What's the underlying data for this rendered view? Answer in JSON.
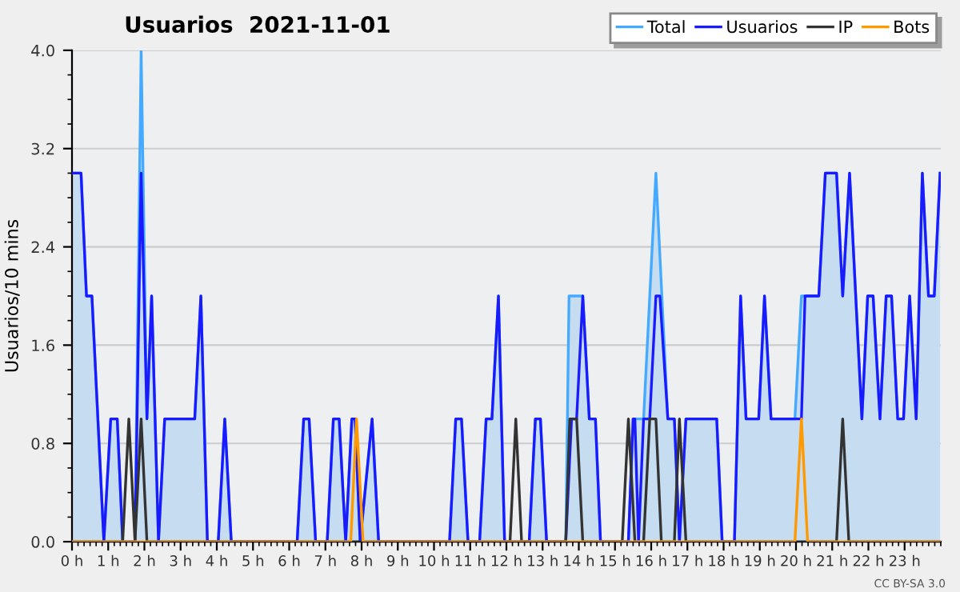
{
  "chart_data": {
    "type": "line",
    "title": "Usuarios  2021-11-01",
    "ylabel": "Usuarios/10 mins",
    "annotations": [
      "CC BY-SA 3.0"
    ],
    "xlim": [
      0,
      24
    ],
    "xticks": [
      {
        "value": 0,
        "label": "0 h"
      },
      {
        "value": 1,
        "label": "1 h"
      },
      {
        "value": 2,
        "label": "2 h"
      },
      {
        "value": 3,
        "label": "3 h"
      },
      {
        "value": 4,
        "label": "4 h"
      },
      {
        "value": 5,
        "label": "5 h"
      },
      {
        "value": 6,
        "label": "6 h"
      },
      {
        "value": 7,
        "label": "7 h"
      },
      {
        "value": 8,
        "label": "8 h"
      },
      {
        "value": 9,
        "label": "9 h"
      },
      {
        "value": 10,
        "label": "10 h"
      },
      {
        "value": 11,
        "label": "11 h"
      },
      {
        "value": 12,
        "label": "12 h"
      },
      {
        "value": 13,
        "label": "13 h"
      },
      {
        "value": 14,
        "label": "14 h"
      },
      {
        "value": 15,
        "label": "15 h"
      },
      {
        "value": 16,
        "label": "16 h"
      },
      {
        "value": 17,
        "label": "17 h"
      },
      {
        "value": 18,
        "label": "18 h"
      },
      {
        "value": 19,
        "label": "19 h"
      },
      {
        "value": 20,
        "label": "20 h"
      },
      {
        "value": 21,
        "label": "21 h"
      },
      {
        "value": 22,
        "label": "22 h"
      },
      {
        "value": 23,
        "label": "23 h"
      }
    ],
    "ylim": [
      0,
      4
    ],
    "yticks": [
      {
        "value": 0,
        "label": "0.0"
      },
      {
        "value": 0.8,
        "label": "0.8"
      },
      {
        "value": 1.6,
        "label": "1.6"
      },
      {
        "value": 2.4,
        "label": "2.4"
      },
      {
        "value": 3.2,
        "label": "3.2"
      },
      {
        "value": 4,
        "label": "4.0"
      }
    ],
    "grid": "y",
    "legend": "top right",
    "marker": "none",
    "line_style": "solid",
    "series": [
      {
        "name": "Total",
        "type": "area",
        "color": "#44aaff",
        "x": [
          0,
          0.25,
          0.4,
          0.55,
          0.88,
          1.07,
          1.25,
          1.4,
          1.74,
          1.91,
          2.07,
          2.2,
          2.39,
          2.56,
          3.39,
          3.56,
          3.74,
          4.04,
          4.22,
          4.4,
          6.22,
          6.4,
          6.55,
          6.73,
          7.05,
          7.22,
          7.38,
          7.56,
          7.73,
          7.82,
          7.96,
          8.29,
          8.47,
          10.43,
          10.6,
          10.76,
          10.94,
          11.26,
          11.44,
          11.6,
          11.78,
          11.95,
          12.63,
          12.8,
          12.94,
          13.11,
          13.64,
          13.73,
          14.11,
          14.29,
          14.46,
          14.6,
          15.37,
          15.5,
          15.79,
          16.13,
          16.46,
          16.64,
          16.78,
          16.96,
          17.81,
          17.96,
          18.3,
          18.47,
          18.62,
          18.97,
          19.13,
          19.31,
          19.97,
          20.15,
          20.63,
          20.81,
          21.12,
          21.29,
          21.48,
          21.82,
          21.98,
          22.13,
          22.32,
          22.49,
          22.64,
          22.81,
          22.97,
          23.14,
          23.32,
          23.49,
          23.66,
          23.82,
          23.98
        ],
        "values": [
          3,
          3,
          2,
          2,
          0,
          1,
          1,
          0,
          0,
          4,
          1,
          2,
          0,
          1,
          1,
          2,
          0,
          0,
          1,
          0,
          0,
          1,
          1,
          0,
          0,
          1,
          1,
          0,
          1,
          1,
          0,
          1,
          0,
          0,
          1,
          1,
          0,
          0,
          1,
          1,
          2,
          0,
          0,
          1,
          1,
          0,
          0,
          2,
          2,
          1,
          1,
          0,
          0,
          1,
          1,
          3,
          1,
          1,
          0,
          1,
          1,
          0,
          0,
          2,
          1,
          1,
          2,
          1,
          1,
          2,
          2,
          3,
          3,
          2,
          3,
          1,
          2,
          2,
          1,
          2,
          2,
          1,
          1,
          2,
          1,
          3,
          2,
          2,
          3
        ]
      },
      {
        "name": "Usuarios",
        "color": "#1a1aff",
        "x": [
          0,
          0.25,
          0.4,
          0.55,
          0.88,
          1.07,
          1.25,
          1.4,
          1.74,
          1.91,
          2.07,
          2.2,
          2.39,
          2.56,
          3.39,
          3.56,
          3.74,
          4.04,
          4.22,
          4.4,
          6.22,
          6.4,
          6.55,
          6.73,
          7.05,
          7.22,
          7.38,
          7.56,
          7.73,
          7.82,
          7.96,
          8.29,
          8.47,
          10.43,
          10.6,
          10.76,
          10.94,
          11.26,
          11.44,
          11.6,
          11.78,
          11.95,
          12.63,
          12.8,
          12.94,
          13.11,
          13.64,
          13.8,
          13.94,
          14.11,
          14.29,
          14.46,
          14.6,
          15.37,
          15.5,
          15.55,
          15.65,
          15.79,
          15.96,
          16.13,
          16.24,
          16.46,
          16.64,
          16.78,
          16.96,
          17.81,
          17.96,
          18.3,
          18.47,
          18.62,
          18.97,
          19.13,
          19.31,
          20.15,
          20.25,
          20.63,
          20.81,
          21.12,
          21.29,
          21.48,
          21.82,
          21.98,
          22.13,
          22.32,
          22.49,
          22.64,
          22.81,
          22.97,
          23.14,
          23.32,
          23.49,
          23.66,
          23.82,
          23.98
        ],
        "values": [
          3,
          3,
          2,
          2,
          0,
          1,
          1,
          0,
          0,
          3,
          1,
          2,
          0,
          1,
          1,
          2,
          0,
          0,
          1,
          0,
          0,
          1,
          1,
          0,
          0,
          1,
          1,
          0,
          1,
          1,
          0,
          1,
          0,
          0,
          1,
          1,
          0,
          0,
          1,
          1,
          2,
          0,
          0,
          1,
          1,
          0,
          0,
          1,
          1,
          2,
          1,
          1,
          0,
          0,
          1,
          1,
          0,
          1,
          1,
          2,
          2,
          1,
          1,
          0,
          1,
          1,
          0,
          0,
          2,
          1,
          1,
          2,
          1,
          1,
          2,
          2,
          3,
          3,
          2,
          3,
          1,
          2,
          2,
          1,
          2,
          2,
          1,
          1,
          2,
          1,
          3,
          2,
          2,
          3
        ]
      },
      {
        "name": "IP",
        "color": "#333333",
        "x": [
          0,
          1.4,
          1.57,
          1.74,
          1.91,
          2.07,
          12.1,
          12.26,
          12.42,
          13.64,
          13.75,
          13.94,
          14.11,
          15.2,
          15.37,
          15.55,
          15.79,
          15.96,
          16.13,
          16.28,
          16.64,
          16.78,
          16.96,
          21.12,
          21.29,
          21.46,
          23.98
        ],
        "values": [
          0,
          0,
          1,
          0,
          1,
          0,
          0,
          1,
          0,
          0,
          1,
          1,
          0,
          0,
          1,
          0,
          0,
          1,
          1,
          0,
          0,
          1,
          0,
          0,
          1,
          0,
          0
        ]
      },
      {
        "name": "Bots",
        "color": "#ff9900",
        "x": [
          0,
          7.7,
          7.86,
          8.04,
          19.97,
          20.15,
          20.32,
          23.98
        ],
        "values": [
          0,
          0,
          1,
          0,
          0,
          1,
          0,
          0
        ]
      }
    ]
  }
}
